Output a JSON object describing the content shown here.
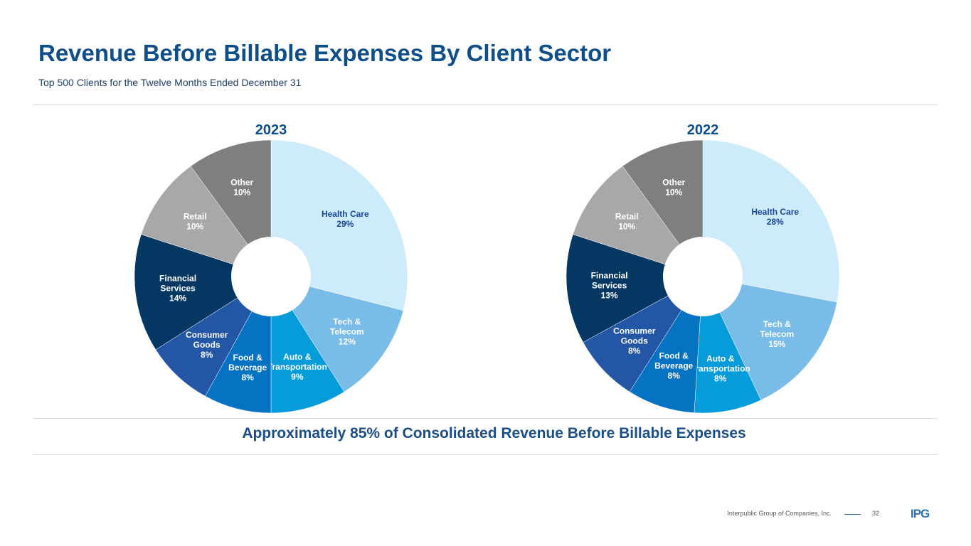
{
  "header": {
    "title": "Revenue Before Billable Expenses By Client Sector",
    "subtitle": "Top 500 Clients for the Twelve Months Ended December 31"
  },
  "colors": {
    "Health Care": "#cdebfa",
    "Tech & Telecom": "#7abce8",
    "Auto & Transportation": "#069bd9",
    "Food & Beverage": "#0672c2",
    "Consumer Goods": "#2456a6",
    "Financial Services": "#053763",
    "Retail": "#a8a8a8",
    "Other": "#7f7f7f"
  },
  "chart_data": [
    {
      "type": "pie",
      "title": "2023",
      "categories": [
        "Health Care",
        "Tech & Telecom",
        "Auto & Transportation",
        "Food & Beverage",
        "Consumer Goods",
        "Financial Services",
        "Retail",
        "Other"
      ],
      "values": [
        29,
        12,
        9,
        8,
        8,
        14,
        10,
        10
      ],
      "labels": [
        {
          "lines": [
            "Health Care",
            "29%"
          ],
          "color": "#17479c"
        },
        {
          "lines": [
            "Tech &",
            "Telecom",
            "12%"
          ],
          "color": "#ffffff"
        },
        {
          "lines": [
            "Auto &",
            "Transportation",
            "9%"
          ],
          "color": "#ffffff"
        },
        {
          "lines": [
            "Food &",
            "Beverage",
            "8%"
          ],
          "color": "#ffffff"
        },
        {
          "lines": [
            "Consumer",
            "Goods",
            "8%"
          ],
          "color": "#ffffff"
        },
        {
          "lines": [
            "Financial",
            "Services",
            "14%"
          ],
          "color": "#ffffff"
        },
        {
          "lines": [
            "Retail",
            "10%"
          ],
          "color": "#ffffff"
        },
        {
          "lines": [
            "Other",
            "10%"
          ],
          "color": "#ffffff"
        }
      ]
    },
    {
      "type": "pie",
      "title": "2022",
      "categories": [
        "Health Care",
        "Tech & Telecom",
        "Auto & Transportation",
        "Food & Beverage",
        "Consumer Goods",
        "Financial Services",
        "Retail",
        "Other"
      ],
      "values": [
        28,
        15,
        8,
        8,
        8,
        13,
        10,
        10
      ],
      "labels": [
        {
          "lines": [
            "Health Care",
            "28%"
          ],
          "color": "#17479c"
        },
        {
          "lines": [
            "Tech &",
            "Telecom",
            "15%"
          ],
          "color": "#ffffff"
        },
        {
          "lines": [
            "Auto &",
            "Transportation",
            "8%"
          ],
          "color": "#ffffff"
        },
        {
          "lines": [
            "Food &",
            "Beverage",
            "8%"
          ],
          "color": "#ffffff"
        },
        {
          "lines": [
            "Consumer",
            "Goods",
            "8%"
          ],
          "color": "#ffffff"
        },
        {
          "lines": [
            "Financial",
            "Services",
            "13%"
          ],
          "color": "#ffffff"
        },
        {
          "lines": [
            "Retail",
            "10%"
          ],
          "color": "#ffffff"
        },
        {
          "lines": [
            "Other",
            "10%"
          ],
          "color": "#ffffff"
        }
      ]
    }
  ],
  "summary": "Approximately 85% of Consolidated Revenue Before Billable Expenses",
  "footer": {
    "company": "Interpublic Group of Companies, Inc.",
    "page": "32",
    "logo_text": "IPG"
  }
}
